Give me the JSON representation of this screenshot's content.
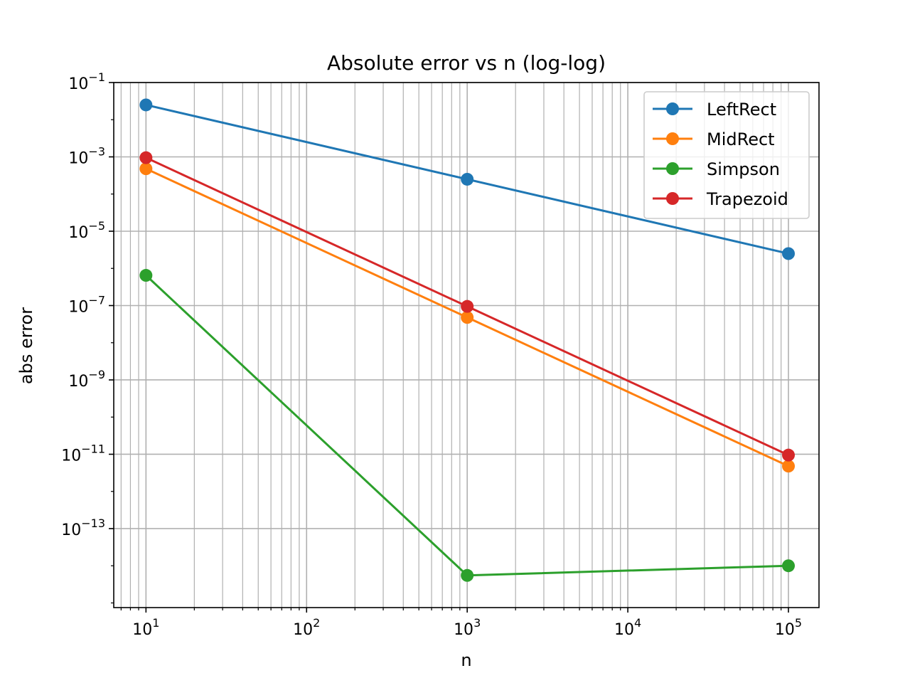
{
  "chart_data": {
    "type": "line",
    "title": "Absolute error vs n (log-log)",
    "xlabel": "n",
    "ylabel": "abs error",
    "xscale": "log",
    "yscale": "log",
    "xlim": [
      6.3,
      155000
    ],
    "ylim": [
      7.5e-16,
      0.1
    ],
    "grid": "on (major and minor)",
    "legend_position": "top-right",
    "x": [
      10,
      1000,
      100000
    ],
    "x_ticks": [
      {
        "base": "10",
        "exp": "1",
        "value": 10
      },
      {
        "base": "10",
        "exp": "2",
        "value": 100
      },
      {
        "base": "10",
        "exp": "3",
        "value": 1000
      },
      {
        "base": "10",
        "exp": "4",
        "value": 10000
      },
      {
        "base": "10",
        "exp": "5",
        "value": 100000
      }
    ],
    "y_ticks": [
      {
        "base": "10",
        "exp": "−1",
        "value": 0.1
      },
      {
        "base": "10",
        "exp": "−3",
        "value": 0.001
      },
      {
        "base": "10",
        "exp": "−5",
        "value": 1e-05
      },
      {
        "base": "10",
        "exp": "−7",
        "value": 1e-07
      },
      {
        "base": "10",
        "exp": "−9",
        "value": 1e-09
      },
      {
        "base": "10",
        "exp": "−11",
        "value": 1e-11
      },
      {
        "base": "10",
        "exp": "−13",
        "value": 1e-13
      }
    ],
    "series": [
      {
        "name": "LeftRect",
        "color": "#1f77b4",
        "values": [
          0.025,
          0.00025,
          2.5e-06
        ]
      },
      {
        "name": "MidRect",
        "color": "#ff7f0e",
        "values": [
          0.00048,
          4.8e-08,
          4.8e-12
        ]
      },
      {
        "name": "Simpson",
        "color": "#2ca02c",
        "values": [
          6.5e-07,
          5.5e-15,
          1e-14
        ]
      },
      {
        "name": "Trapezoid",
        "color": "#d62728",
        "values": [
          0.00095,
          9.5e-08,
          9.5e-12
        ]
      }
    ]
  }
}
